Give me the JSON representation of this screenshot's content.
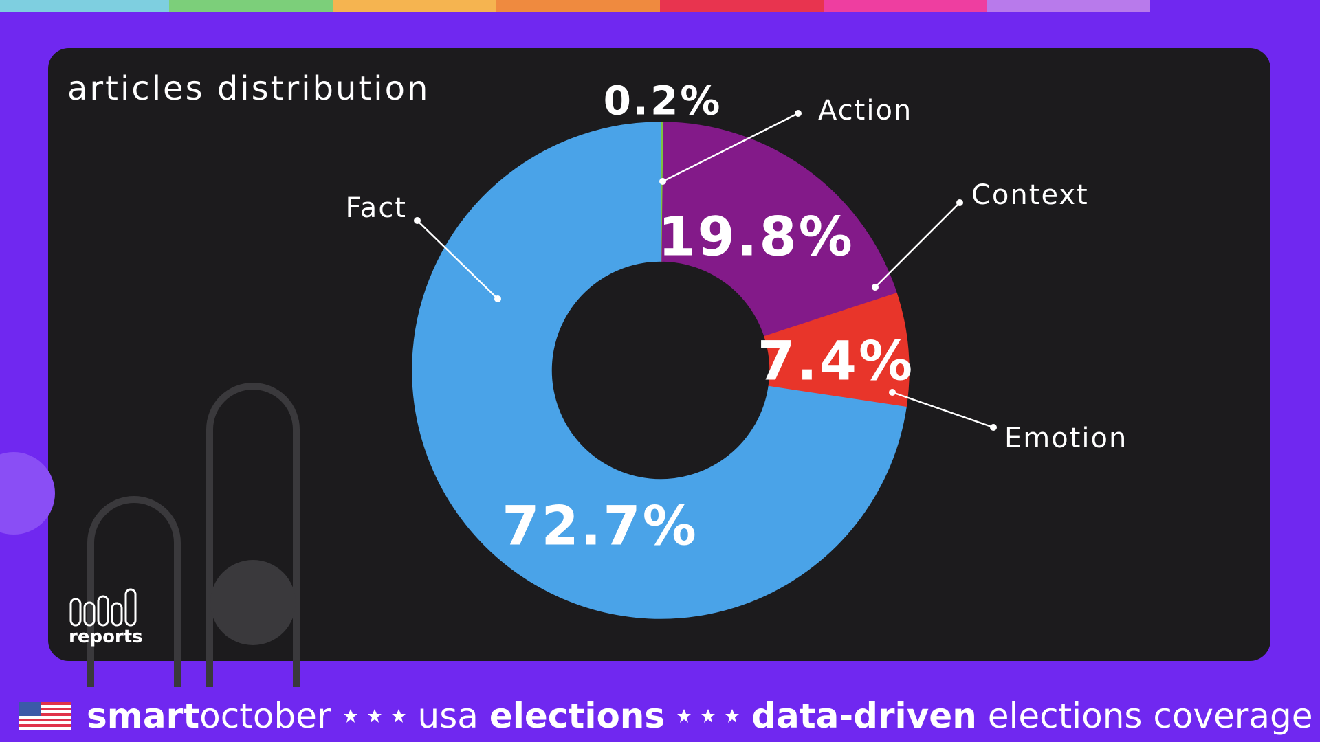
{
  "chart_data": {
    "type": "donut",
    "title": "articles distribution",
    "categories": [
      "Action",
      "Context",
      "Emotion",
      "Fact"
    ],
    "values": [
      0.2,
      19.8,
      7.4,
      72.7
    ],
    "value_labels": [
      "0.2%",
      "19.8%",
      "7.4%",
      "72.7%"
    ],
    "colors": [
      "#7cc242",
      "#831a89",
      "#e8352a",
      "#4aa3e8"
    ]
  },
  "logo": {
    "text": "reports"
  },
  "footer": {
    "brand_bold": "smart",
    "brand_light": "october",
    "topic_light": "usa",
    "topic_bold": "elections",
    "tag_bold": "data-driven",
    "tag_light": "elections coverage"
  }
}
